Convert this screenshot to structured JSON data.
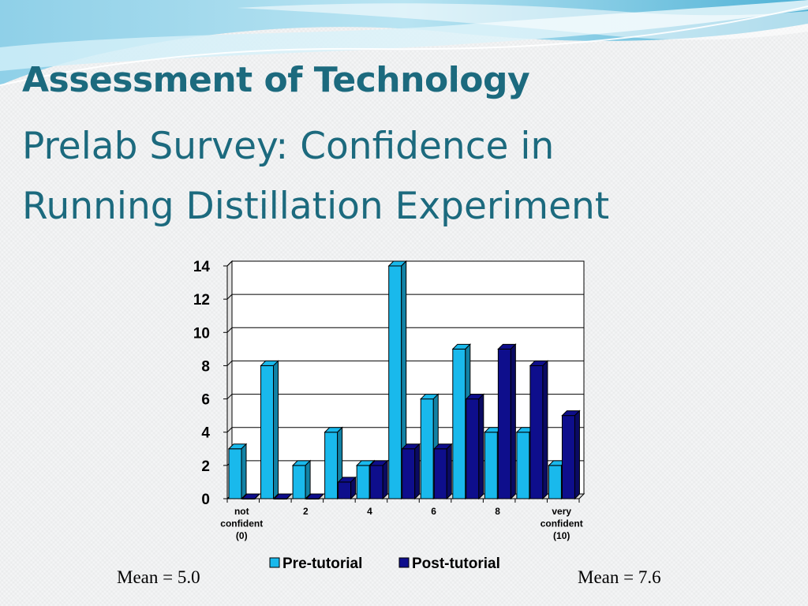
{
  "slide": {
    "title": "Assessment of Technology",
    "subtitle_line1": "Prelab Survey: Confidence in",
    "subtitle_line2": "Running Distillation Experiment"
  },
  "means": {
    "pre": "Mean = 5.0",
    "post": "Mean = 7.6"
  },
  "colors": {
    "title": "#1c6a7e",
    "pre_bar": "#19b9ec",
    "post_bar": "#0e0e8c"
  },
  "chart_data": {
    "type": "bar",
    "title": "",
    "xlabel": "",
    "ylabel": "",
    "ylim": [
      0,
      14
    ],
    "yticks": [
      0,
      2,
      4,
      6,
      8,
      10,
      12,
      14
    ],
    "grid": true,
    "legend_position": "bottom",
    "categories": [
      "0",
      "1",
      "2",
      "3",
      "4",
      "5",
      "6",
      "7",
      "8",
      "9",
      "10"
    ],
    "x_tick_labels": [
      [
        "not",
        "confident",
        "(0)"
      ],
      [],
      [
        "2"
      ],
      [],
      [
        "4"
      ],
      [],
      [
        "6"
      ],
      [],
      [
        "8"
      ],
      [],
      [
        "very",
        "confident",
        "(10)"
      ]
    ],
    "series": [
      {
        "name": "Pre-tutorial",
        "values": [
          3,
          8,
          2,
          4,
          2,
          14,
          6,
          9,
          4,
          4,
          2
        ]
      },
      {
        "name": "Post-tutorial",
        "values": [
          0,
          0,
          0,
          1,
          2,
          3,
          3,
          6,
          9,
          8,
          5
        ]
      }
    ]
  }
}
